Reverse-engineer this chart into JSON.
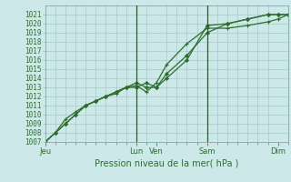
{
  "xlabel": "Pression niveau de la mer( hPa )",
  "ylim": [
    1007,
    1022
  ],
  "yticks": [
    1007,
    1008,
    1009,
    1010,
    1011,
    1012,
    1013,
    1014,
    1015,
    1016,
    1017,
    1018,
    1019,
    1020,
    1021
  ],
  "bg_color": "#cce8e8",
  "grid_color": "#a8c8c8",
  "line_color": "#2d6e2d",
  "x_day_labels": [
    "Jeu",
    "Lun",
    "Ven",
    "Sam",
    "Dim"
  ],
  "x_day_positions": [
    0,
    4.5,
    5.5,
    8.0,
    11.5
  ],
  "vline_positions": [
    4.5,
    8.0
  ],
  "xlim": [
    0,
    12.0
  ],
  "series1_x": [
    0,
    0.5,
    1.0,
    1.5,
    2.0,
    2.5,
    3.0,
    3.5,
    4.0,
    4.5,
    5.0,
    5.5,
    6.0,
    7.0,
    8.0,
    9.0,
    10.0,
    11.0,
    11.5,
    12.0
  ],
  "series1_y": [
    1007,
    1008,
    1009,
    1010,
    1011,
    1011.5,
    1012,
    1012.5,
    1013,
    1013,
    1013.5,
    1013,
    1014,
    1016,
    1019.8,
    1020,
    1020.5,
    1021,
    1021,
    1021
  ],
  "series2_x": [
    0,
    0.5,
    1.0,
    1.5,
    2.0,
    2.5,
    3.0,
    3.5,
    4.0,
    4.5,
    5.0,
    5.5,
    6.0,
    7.0,
    8.0,
    9.0,
    10.0,
    11.0,
    11.5,
    12.0
  ],
  "series2_y": [
    1007,
    1008,
    1009.5,
    1010.3,
    1011.0,
    1011.5,
    1012.0,
    1012.3,
    1013.0,
    1013.2,
    1012.5,
    1013.5,
    1015.5,
    1017.8,
    1019.5,
    1019.5,
    1019.8,
    1020.2,
    1020.5,
    1021.0
  ],
  "series3_x": [
    0,
    0.5,
    1.0,
    1.5,
    2.0,
    2.5,
    3.0,
    3.5,
    4.0,
    4.5,
    5.0,
    5.5,
    6.0,
    7.0,
    8.0,
    9.0,
    10.0,
    11.0,
    11.5,
    12.0
  ],
  "series3_y": [
    1007,
    1008,
    1009,
    1010,
    1011,
    1011.5,
    1012,
    1012.5,
    1013,
    1013.5,
    1013,
    1013,
    1014.5,
    1016.5,
    1019.0,
    1020.0,
    1020.5,
    1021.0,
    1021.0,
    1021.0
  ]
}
